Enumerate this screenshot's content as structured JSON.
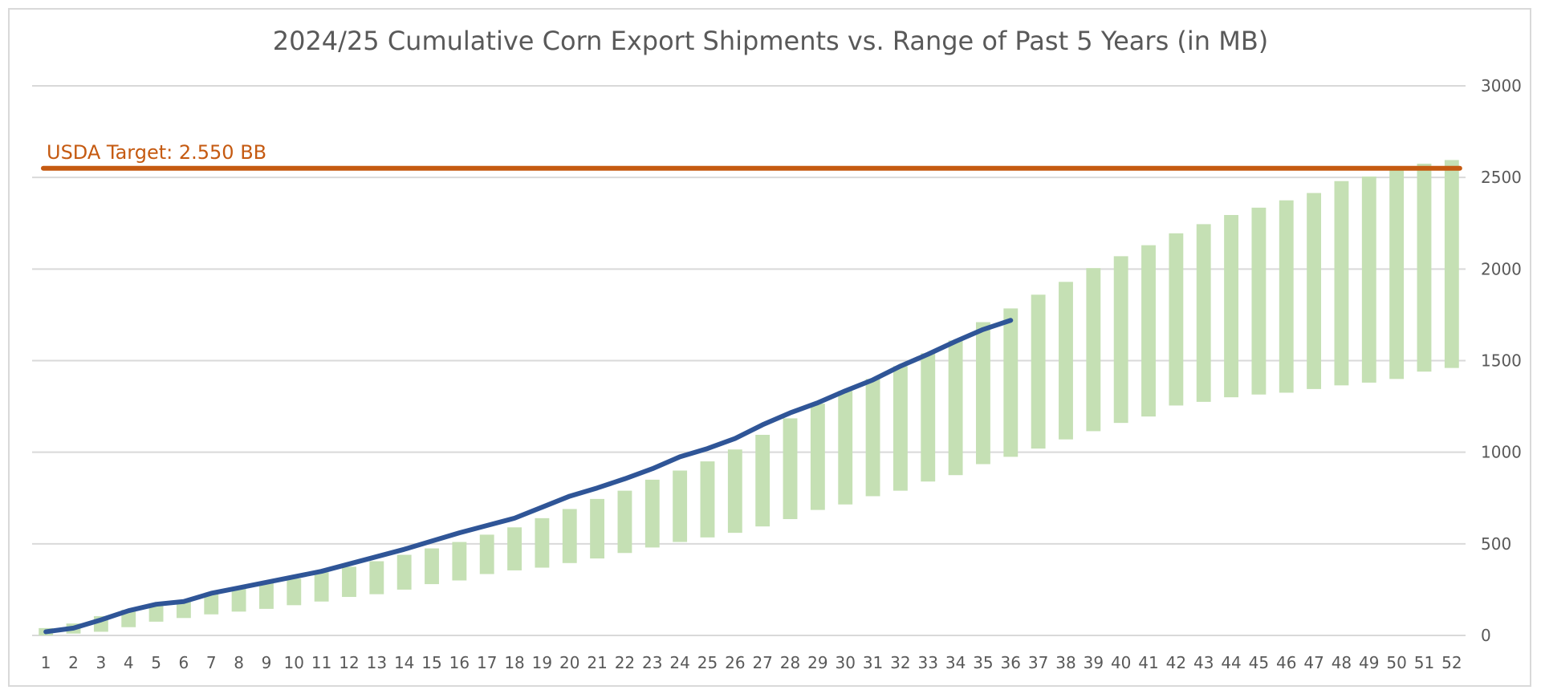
{
  "chart_data": {
    "type": "bar",
    "title": "2024/25 Cumulative Corn Export Shipments vs. Range of Past 5 Years (in MB)",
    "y_axis": {
      "position": "right",
      "ylim": [
        0,
        3000
      ],
      "ticks": [
        0,
        500,
        1000,
        1500,
        2000,
        2500,
        3000
      ]
    },
    "x_axis": {
      "categories": [
        1,
        2,
        3,
        4,
        5,
        6,
        7,
        8,
        9,
        10,
        11,
        12,
        13,
        14,
        15,
        16,
        17,
        18,
        19,
        20,
        21,
        22,
        23,
        24,
        25,
        26,
        27,
        28,
        29,
        30,
        31,
        32,
        33,
        34,
        35,
        36,
        37,
        38,
        39,
        40,
        41,
        42,
        43,
        44,
        45,
        46,
        47,
        48,
        49,
        50,
        51,
        52
      ]
    },
    "grid": true,
    "range_bars": {
      "color": "#c5e0b4",
      "low": [
        0,
        10,
        20,
        45,
        75,
        95,
        115,
        130,
        145,
        165,
        185,
        210,
        225,
        250,
        280,
        300,
        335,
        355,
        370,
        395,
        420,
        450,
        480,
        510,
        535,
        560,
        595,
        635,
        685,
        715,
        760,
        790,
        840,
        875,
        935,
        975,
        1020,
        1070,
        1115,
        1160,
        1195,
        1255,
        1275,
        1300,
        1315,
        1325,
        1345,
        1365,
        1380,
        1400,
        1440,
        1460
      ],
      "high": [
        40,
        65,
        105,
        140,
        165,
        190,
        230,
        260,
        290,
        310,
        345,
        375,
        405,
        440,
        475,
        510,
        550,
        590,
        640,
        690,
        745,
        790,
        850,
        900,
        950,
        1015,
        1095,
        1185,
        1265,
        1335,
        1400,
        1470,
        1540,
        1610,
        1710,
        1785,
        1860,
        1930,
        2005,
        2070,
        2130,
        2195,
        2245,
        2295,
        2335,
        2375,
        2415,
        2480,
        2505,
        2555,
        2575,
        2595
      ]
    },
    "series": [
      {
        "color": "#2f5597",
        "x": [
          1,
          2,
          3,
          4,
          5,
          6,
          7,
          8,
          9,
          10,
          11,
          12,
          13,
          14,
          15,
          16,
          17,
          18,
          19,
          20,
          21,
          22,
          23,
          24,
          25,
          26,
          27,
          28,
          29,
          30,
          31,
          32,
          33,
          34,
          35,
          36
        ],
        "values": [
          20,
          40,
          85,
          135,
          170,
          185,
          230,
          260,
          290,
          320,
          350,
          390,
          430,
          470,
          515,
          560,
          600,
          640,
          700,
          760,
          805,
          855,
          910,
          975,
          1020,
          1075,
          1150,
          1215,
          1270,
          1335,
          1395,
          1470,
          1535,
          1605,
          1670,
          1720
        ]
      }
    ],
    "target_line": {
      "label": "USDA Target: 2.550 BB",
      "value": 2550,
      "color": "#c55a11"
    },
    "colors": {
      "grid": "#d9d9d9",
      "text": "#595959"
    }
  }
}
